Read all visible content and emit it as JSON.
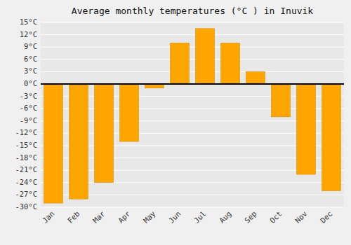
{
  "chart_data": {
    "type": "bar",
    "title": "Average monthly temperatures (°C ) in Inuvik",
    "categories": [
      "Jan",
      "Feb",
      "Mar",
      "Apr",
      "May",
      "Jun",
      "Jul",
      "Aug",
      "Sep",
      "Oct",
      "Nov",
      "Dec"
    ],
    "values": [
      -29,
      -28,
      -24,
      -14,
      -1,
      10,
      13.5,
      10,
      3,
      -8,
      -22,
      -26
    ],
    "color": "#FFA500",
    "ylim": [
      -30,
      15
    ],
    "yticks": [
      {
        "value": -30,
        "label": "-30°C"
      },
      {
        "value": -27,
        "label": "-27°C"
      },
      {
        "value": -24,
        "label": "-24°C"
      },
      {
        "value": -21,
        "label": "-21°C"
      },
      {
        "value": -18,
        "label": "-18°C"
      },
      {
        "value": -15,
        "label": "-15°C"
      },
      {
        "value": -12,
        "label": "-12°C"
      },
      {
        "value": -9,
        "label": "-9°C"
      },
      {
        "value": -6,
        "label": "-6°C"
      },
      {
        "value": -3,
        "label": "-3°C"
      },
      {
        "value": 0,
        "label": "0°C"
      },
      {
        "value": 3,
        "label": "3°C"
      },
      {
        "value": 6,
        "label": "6°C"
      },
      {
        "value": 9,
        "label": "9°C"
      },
      {
        "value": 12,
        "label": "12°C"
      },
      {
        "value": 15,
        "label": "15°C"
      }
    ],
    "grid": true
  }
}
